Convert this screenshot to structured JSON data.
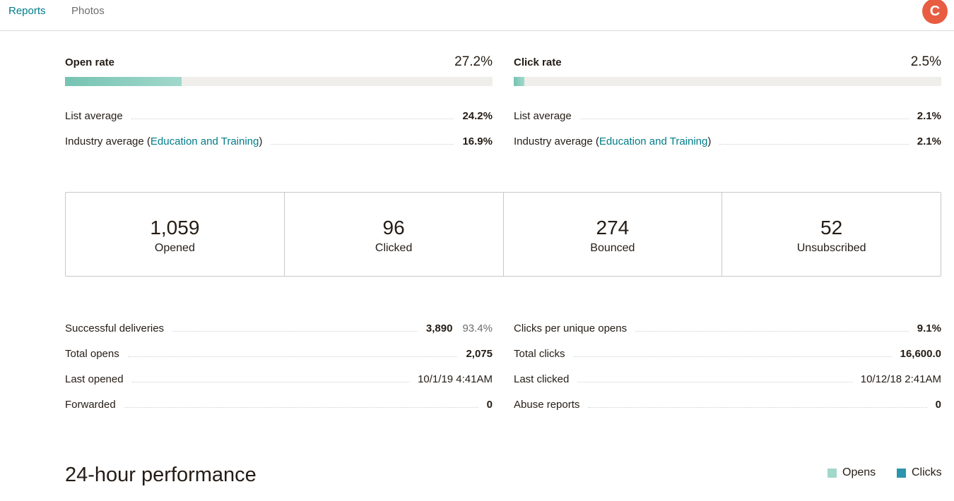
{
  "tabs": [
    {
      "label": "Reports",
      "active": true
    },
    {
      "label": "Photos",
      "active": false
    }
  ],
  "avatar": {
    "initial": "C",
    "color": "#e85c41"
  },
  "open_rate": {
    "title": "Open rate",
    "value": "27.2%",
    "fill_fraction": 0.272,
    "list_average": {
      "label": "List average",
      "value": "24.2%"
    },
    "industry_average": {
      "label_prefix": "Industry average (",
      "link": "Education and Training",
      "label_suffix": ")",
      "value": "16.9%"
    }
  },
  "click_rate": {
    "title": "Click rate",
    "value": "2.5%",
    "fill_fraction": 0.025,
    "list_average": {
      "label": "List average",
      "value": "2.1%"
    },
    "industry_average": {
      "label_prefix": "Industry average (",
      "link": "Education and Training",
      "label_suffix": ")",
      "value": "2.1%"
    }
  },
  "stats": [
    {
      "number": "1,059",
      "label": "Opened"
    },
    {
      "number": "96",
      "label": "Clicked"
    },
    {
      "number": "274",
      "label": "Bounced"
    },
    {
      "number": "52",
      "label": "Unsubscribed"
    }
  ],
  "details_left": [
    {
      "label": "Successful deliveries",
      "value": "3,890",
      "extra": "93.4%",
      "bold": true
    },
    {
      "label": "Total opens",
      "value": "2,075",
      "bold": true
    },
    {
      "label": "Last opened",
      "value": "10/1/19 4:41AM",
      "bold": false
    },
    {
      "label": "Forwarded",
      "value": "0",
      "bold": true
    }
  ],
  "details_right": [
    {
      "label": "Clicks per unique opens",
      "value": "9.1%",
      "bold": true
    },
    {
      "label": "Total clicks",
      "value": "16,600.0",
      "bold": true
    },
    {
      "label": "Last clicked",
      "value": "10/12/18 2:41AM",
      "bold": false
    },
    {
      "label": "Abuse reports",
      "value": "0",
      "bold": true
    }
  ],
  "performance": {
    "title": "24-hour performance",
    "legend": [
      {
        "label": "Opens",
        "color": "#a1d8cb"
      },
      {
        "label": "Clicks",
        "color": "#2a95ad"
      }
    ]
  }
}
